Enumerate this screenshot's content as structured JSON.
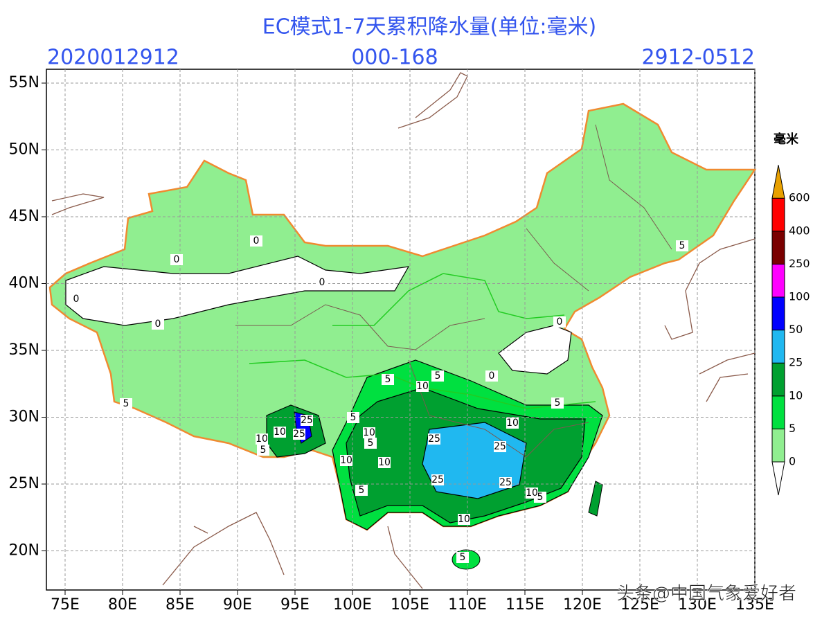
{
  "header": {
    "title": "EC模式1-7天累积降水量(单位:毫米)",
    "left": "2020012912",
    "center": "000-168",
    "right": "2912-0512"
  },
  "axes": {
    "lat_labels": [
      "55N",
      "50N",
      "45N",
      "40N",
      "35N",
      "30N",
      "25N",
      "20N"
    ],
    "lon_labels": [
      "75E",
      "80E",
      "85E",
      "90E",
      "95E",
      "100E",
      "105E",
      "110E",
      "115E",
      "120E",
      "125E",
      "130E",
      "135E"
    ]
  },
  "legend": {
    "unit": "毫米",
    "levels": [
      "0",
      "5",
      "10",
      "25",
      "50",
      "100",
      "250",
      "400",
      "600"
    ]
  },
  "contour_labels": [
    "0",
    "0",
    "0",
    "0",
    "0",
    "0",
    "0",
    "5",
    "5",
    "5",
    "5",
    "5",
    "5",
    "5",
    "5",
    "5",
    "5",
    "5",
    "10",
    "10",
    "10",
    "10",
    "10",
    "10",
    "10",
    "10",
    "10",
    "25",
    "25",
    "25",
    "25",
    "25",
    "25"
  ],
  "watermark": "头条@中国气象爱好者"
}
